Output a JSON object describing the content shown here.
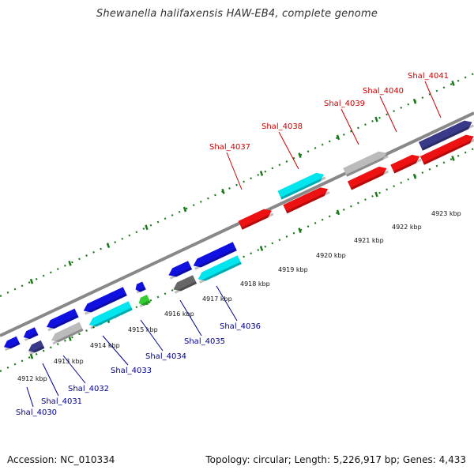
{
  "title": "Shewanella halifaxensis HAW-EB4, complete genome",
  "accession": "Accession: NC_010334",
  "summary": "Topology: circular; Length: 5,226,917 bp; Genes: 4,433",
  "colors": {
    "forward_label": "#cc0000",
    "reverse_label": "#00008b",
    "backbone": "#888888",
    "ticks": "#1a7a1a"
  },
  "kbp_labels": [
    "4912 kbp",
    "4913 kbp",
    "4914 kbp",
    "4915 kbp",
    "4916 kbp",
    "4917 kbp",
    "4918 kbp",
    "4919 kbp",
    "4920 kbp",
    "4921 kbp",
    "4922 kbp",
    "4923 kbp"
  ],
  "genes_forward": [
    {
      "label": "Shal_4037"
    },
    {
      "label": "Shal_4038"
    },
    {
      "label": "Shal_4039"
    },
    {
      "label": "Shal_4040"
    },
    {
      "label": "Shal_4041"
    }
  ],
  "genes_reverse": [
    {
      "label": "Shal_4030"
    },
    {
      "label": "Shal_4031"
    },
    {
      "label": "Shal_4032"
    },
    {
      "label": "Shal_4033"
    },
    {
      "label": "Shal_4034"
    },
    {
      "label": "Shal_4035"
    },
    {
      "label": "Shal_4036"
    }
  ]
}
